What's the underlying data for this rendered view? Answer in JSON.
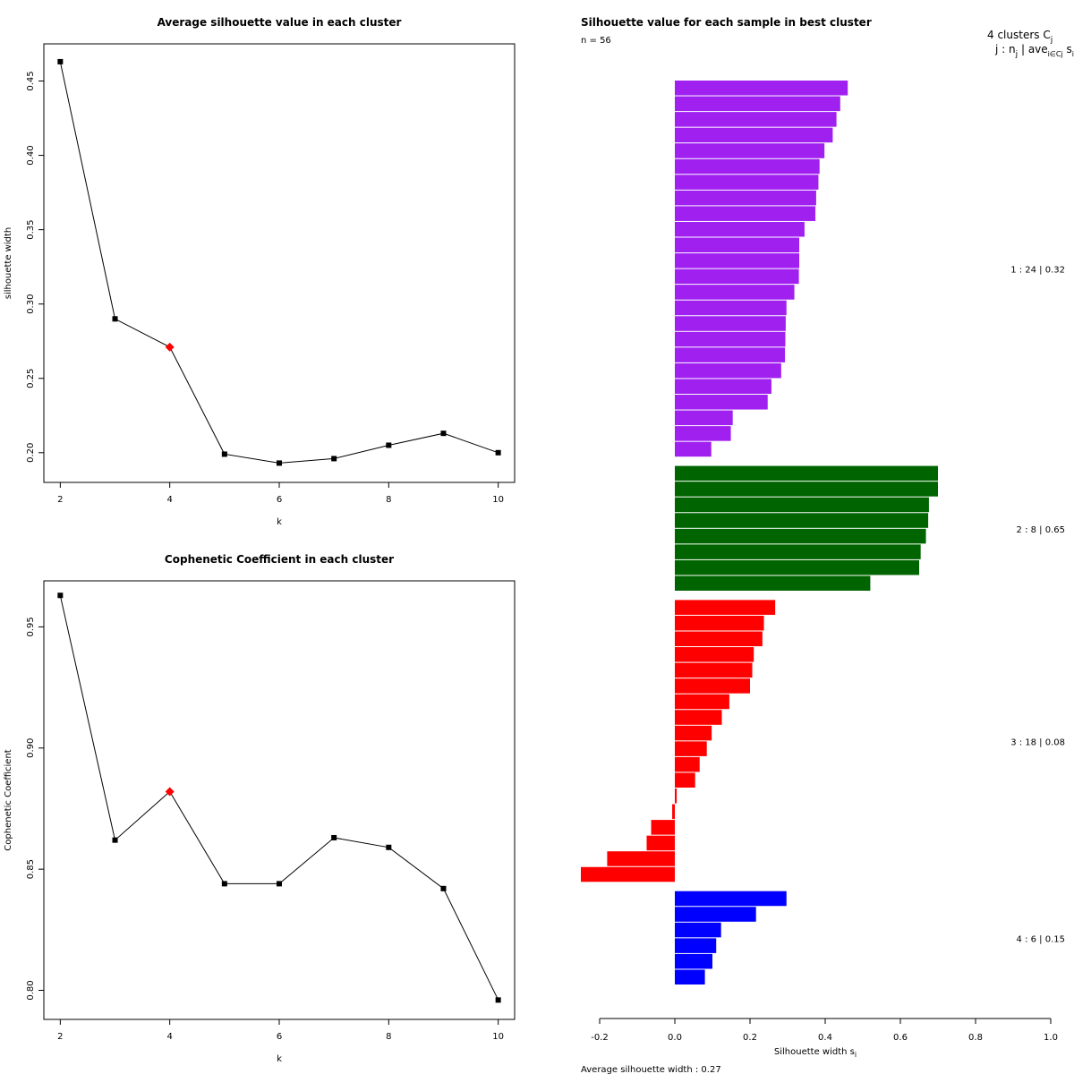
{
  "chart_data": [
    {
      "type": "line",
      "title": "Average silhouette value in each cluster",
      "xlabel": "k",
      "ylabel": "silhouette width",
      "x": [
        2,
        3,
        4,
        5,
        6,
        7,
        8,
        9,
        10
      ],
      "values": [
        0.463,
        0.29,
        0.271,
        0.199,
        0.193,
        0.196,
        0.205,
        0.213,
        0.2
      ],
      "highlight_index": 2,
      "highlight_color": "#ff0000",
      "xlim": [
        1.7,
        10.3
      ],
      "ylim": [
        0.18,
        0.475
      ],
      "xticks": [
        2,
        4,
        6,
        8,
        10
      ],
      "yticks": [
        0.2,
        0.25,
        0.3,
        0.35,
        0.4,
        0.45
      ],
      "ytick_labels": [
        "0.20",
        "0.25",
        "0.30",
        "0.35",
        "0.40",
        "0.45"
      ]
    },
    {
      "type": "line",
      "title": "Cophenetic Coefficient in each cluster",
      "xlabel": "k",
      "ylabel": "Cophenetic Coefficient",
      "x": [
        2,
        3,
        4,
        5,
        6,
        7,
        8,
        9,
        10
      ],
      "values": [
        0.963,
        0.862,
        0.882,
        0.844,
        0.844,
        0.863,
        0.859,
        0.842,
        0.796
      ],
      "highlight_index": 2,
      "highlight_color": "#ff0000",
      "xlim": [
        1.7,
        10.3
      ],
      "ylim": [
        0.788,
        0.969
      ],
      "xticks": [
        2,
        4,
        6,
        8,
        10
      ],
      "yticks": [
        0.8,
        0.85,
        0.9,
        0.95
      ],
      "ytick_labels": [
        "0.80",
        "0.85",
        "0.90",
        "0.95"
      ]
    },
    {
      "type": "bar",
      "orientation": "horizontal",
      "title": "Silhouette value for each sample in best cluster",
      "n_label": "n = 56",
      "header_line1": "4  clusters  C",
      "header_line1_sub": "j",
      "header_line2": "j :  n",
      "header_line2_sub": "j",
      "header_line2_mid": " | ave",
      "header_line2_sub2": "i∈Cj",
      "header_line2_end": "  s",
      "header_line2_sub3": "i",
      "xlabel": "Silhouette width s",
      "xlabel_sub": "i",
      "footer": "Average silhouette width :  0.27",
      "xlim": [
        -0.2,
        1.0
      ],
      "xticks": [
        -0.2,
        0.0,
        0.2,
        0.4,
        0.6,
        0.8,
        1.0
      ],
      "xtick_labels": [
        "-0.2",
        "0.0",
        "0.2",
        "0.4",
        "0.6",
        "0.8",
        "1.0"
      ],
      "clusters": [
        {
          "label": "1 :  24  |  0.32",
          "color": "#a020f0",
          "values": [
            0.46,
            0.44,
            0.43,
            0.42,
            0.398,
            0.385,
            0.382,
            0.376,
            0.374,
            0.345,
            0.331,
            0.331,
            0.33,
            0.318,
            0.297,
            0.295,
            0.294,
            0.293,
            0.283,
            0.257,
            0.247,
            0.154,
            0.149,
            0.097
          ]
        },
        {
          "label": "2 :  8  |  0.65",
          "color": "#006400",
          "values": [
            0.7,
            0.7,
            0.676,
            0.674,
            0.668,
            0.654,
            0.65,
            0.52
          ]
        },
        {
          "label": "3 :  18  |  0.08",
          "color": "#ff0000",
          "values": [
            0.267,
            0.237,
            0.233,
            0.21,
            0.206,
            0.2,
            0.145,
            0.125,
            0.098,
            0.085,
            0.066,
            0.054,
            0.005,
            -0.007,
            -0.063,
            -0.075,
            -0.18,
            -0.25
          ]
        },
        {
          "label": "4 :  6  |  0.15",
          "color": "#0000ff",
          "values": [
            0.297,
            0.216,
            0.123,
            0.11,
            0.1,
            0.08
          ]
        }
      ]
    }
  ]
}
